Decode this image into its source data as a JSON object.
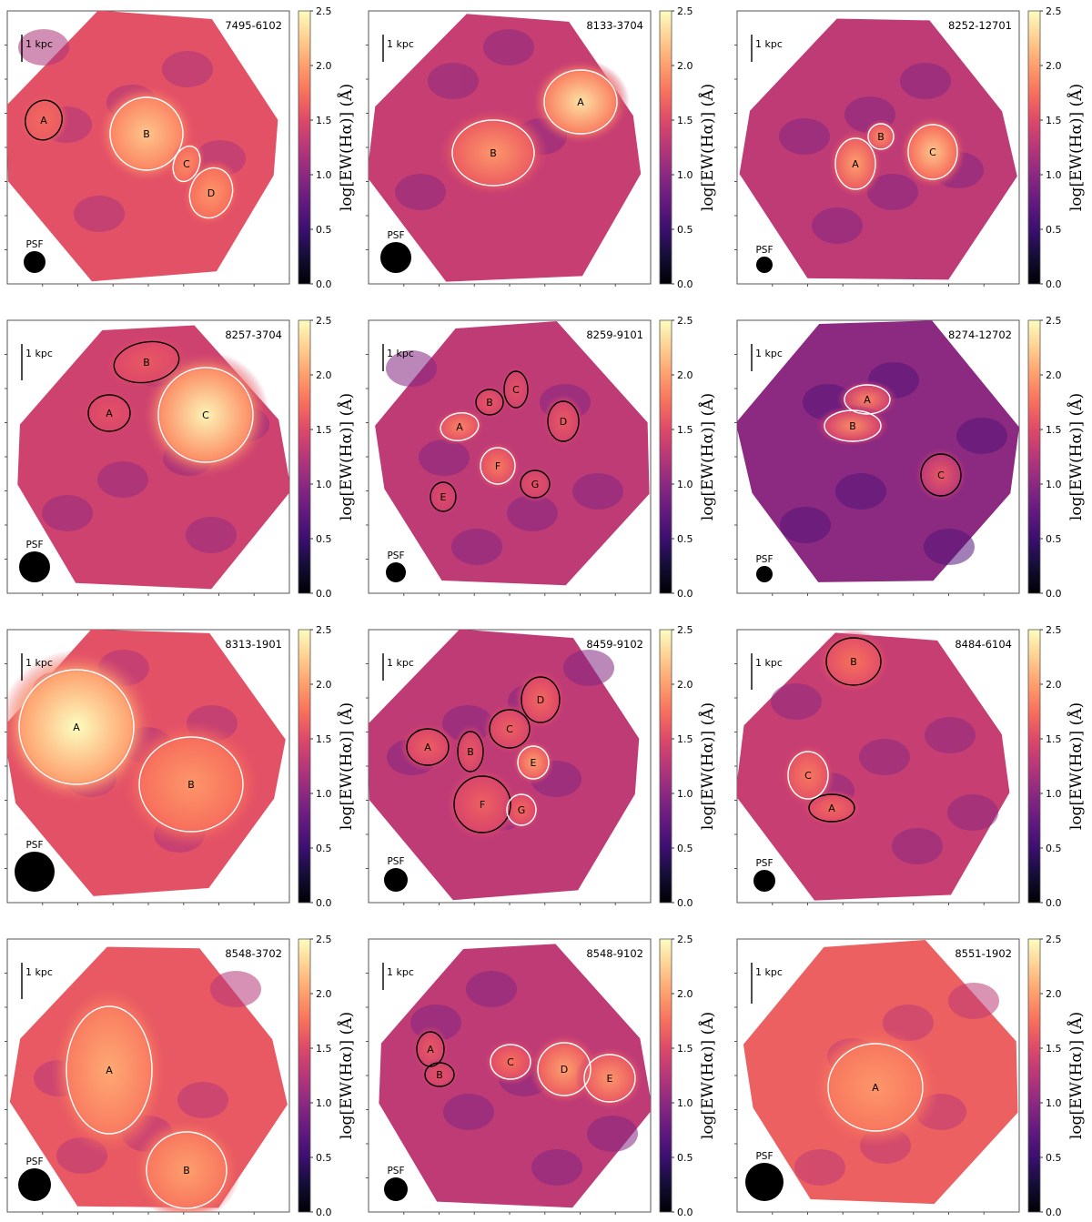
{
  "colorbar": {
    "label": "log[EW(Hα)] (Å)",
    "ticks": [
      "0.0",
      "0.5",
      "1.0",
      "1.5",
      "2.0",
      "2.5"
    ],
    "range": [
      0.0,
      2.5
    ],
    "colormap": "magma"
  },
  "scale_bar_label": "1 kpc",
  "psf_label": "PSF",
  "chart_data": [
    {
      "type": "heatmap",
      "id": "7495-6102",
      "title": "7495-6102",
      "base_level": 1.55,
      "ylim": [
        0.0,
        2.5
      ],
      "regions": [
        {
          "label": "A",
          "peak": 1.7,
          "outline": "black"
        },
        {
          "label": "B",
          "peak": 2.2,
          "outline": "white"
        },
        {
          "label": "C",
          "peak": 1.9,
          "outline": "white"
        },
        {
          "label": "D",
          "peak": 1.95,
          "outline": "white"
        }
      ]
    },
    {
      "type": "heatmap",
      "id": "8133-3704",
      "title": "8133-3704",
      "base_level": 1.35,
      "ylim": [
        0.0,
        2.5
      ],
      "regions": [
        {
          "label": "A",
          "peak": 2.35,
          "outline": "white"
        },
        {
          "label": "B",
          "peak": 1.95,
          "outline": "white"
        }
      ]
    },
    {
      "type": "heatmap",
      "id": "8252-12701",
      "title": "8252-12701",
      "base_level": 1.3,
      "ylim": [
        0.0,
        2.5
      ],
      "regions": [
        {
          "label": "A",
          "peak": 2.0,
          "outline": "white"
        },
        {
          "label": "B",
          "peak": 1.9,
          "outline": "white"
        },
        {
          "label": "C",
          "peak": 2.2,
          "outline": "white"
        }
      ]
    },
    {
      "type": "heatmap",
      "id": "8257-3704",
      "title": "8257-3704",
      "base_level": 1.4,
      "ylim": [
        0.0,
        2.5
      ],
      "regions": [
        {
          "label": "A",
          "peak": 1.55,
          "outline": "black"
        },
        {
          "label": "B",
          "peak": 1.6,
          "outline": "black"
        },
        {
          "label": "C",
          "peak": 2.45,
          "outline": "white"
        }
      ]
    },
    {
      "type": "heatmap",
      "id": "8259-9101",
      "title": "8259-9101",
      "base_level": 1.3,
      "ylim": [
        0.0,
        2.5
      ],
      "regions": [
        {
          "label": "A",
          "peak": 1.85,
          "outline": "white"
        },
        {
          "label": "B",
          "peak": 1.6,
          "outline": "black"
        },
        {
          "label": "C",
          "peak": 1.55,
          "outline": "black"
        },
        {
          "label": "D",
          "peak": 1.6,
          "outline": "black"
        },
        {
          "label": "E",
          "peak": 1.5,
          "outline": "black"
        },
        {
          "label": "F",
          "peak": 1.8,
          "outline": "white"
        },
        {
          "label": "G",
          "peak": 1.55,
          "outline": "black"
        }
      ]
    },
    {
      "type": "heatmap",
      "id": "8274-12702",
      "title": "8274-12702",
      "base_level": 1.0,
      "ylim": [
        0.0,
        2.5
      ],
      "regions": [
        {
          "label": "A",
          "peak": 1.85,
          "outline": "white"
        },
        {
          "label": "B",
          "peak": 1.9,
          "outline": "white"
        },
        {
          "label": "C",
          "peak": 1.6,
          "outline": "black"
        }
      ]
    },
    {
      "type": "heatmap",
      "id": "8313-1901",
      "title": "8313-1901",
      "base_level": 1.55,
      "ylim": [
        0.0,
        2.5
      ],
      "regions": [
        {
          "label": "A",
          "peak": 2.5,
          "outline": "white"
        },
        {
          "label": "B",
          "peak": 1.95,
          "outline": "white"
        }
      ]
    },
    {
      "type": "heatmap",
      "id": "8459-9102",
      "title": "8459-9102",
      "base_level": 1.3,
      "ylim": [
        0.0,
        2.5
      ],
      "regions": [
        {
          "label": "A",
          "peak": 1.65,
          "outline": "black"
        },
        {
          "label": "B",
          "peak": 1.6,
          "outline": "black"
        },
        {
          "label": "C",
          "peak": 1.65,
          "outline": "black"
        },
        {
          "label": "D",
          "peak": 1.7,
          "outline": "black"
        },
        {
          "label": "E",
          "peak": 2.0,
          "outline": "white"
        },
        {
          "label": "F",
          "peak": 1.65,
          "outline": "black"
        },
        {
          "label": "G",
          "peak": 1.7,
          "outline": "white"
        }
      ]
    },
    {
      "type": "heatmap",
      "id": "8484-6104",
      "title": "8484-6104",
      "base_level": 1.35,
      "ylim": [
        0.0,
        2.5
      ],
      "regions": [
        {
          "label": "A",
          "peak": 1.7,
          "outline": "black"
        },
        {
          "label": "B",
          "peak": 1.75,
          "outline": "black"
        },
        {
          "label": "C",
          "peak": 1.8,
          "outline": "white"
        }
      ]
    },
    {
      "type": "heatmap",
      "id": "8548-3702",
      "title": "8548-3702",
      "base_level": 1.6,
      "ylim": [
        0.0,
        2.5
      ],
      "regions": [
        {
          "label": "A",
          "peak": 2.05,
          "outline": "white"
        },
        {
          "label": "B",
          "peak": 2.0,
          "outline": "white"
        }
      ]
    },
    {
      "type": "heatmap",
      "id": "8548-9102",
      "title": "8548-9102",
      "base_level": 1.3,
      "ylim": [
        0.0,
        2.5
      ],
      "regions": [
        {
          "label": "A",
          "peak": 1.6,
          "outline": "black"
        },
        {
          "label": "B",
          "peak": 1.55,
          "outline": "black"
        },
        {
          "label": "C",
          "peak": 1.75,
          "outline": "white"
        },
        {
          "label": "D",
          "peak": 2.0,
          "outline": "white"
        },
        {
          "label": "E",
          "peak": 1.95,
          "outline": "white"
        }
      ]
    },
    {
      "type": "heatmap",
      "id": "8551-1902",
      "title": "8551-1902",
      "base_level": 1.65,
      "ylim": [
        0.0,
        2.5
      ],
      "regions": [
        {
          "label": "A",
          "peak": 1.95,
          "outline": "white"
        }
      ]
    }
  ]
}
